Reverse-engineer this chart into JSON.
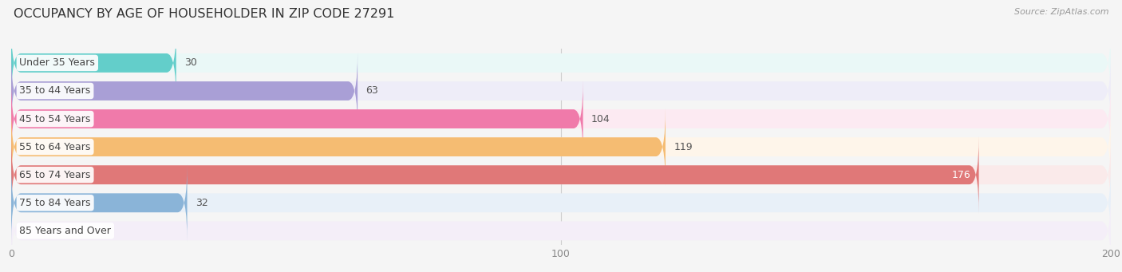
{
  "title": "OCCUPANCY BY AGE OF HOUSEHOLDER IN ZIP CODE 27291",
  "source": "Source: ZipAtlas.com",
  "categories": [
    "Under 35 Years",
    "35 to 44 Years",
    "45 to 54 Years",
    "55 to 64 Years",
    "65 to 74 Years",
    "75 to 84 Years",
    "85 Years and Over"
  ],
  "values": [
    30,
    63,
    104,
    119,
    176,
    32,
    0
  ],
  "bar_colors": [
    "#63ceca",
    "#a99fd6",
    "#f07aaa",
    "#f5bc72",
    "#e07878",
    "#8ab4d8",
    "#c8a8d2"
  ],
  "bar_bg_colors": [
    "#eaf8f7",
    "#eeedf8",
    "#fceaf2",
    "#fef5ea",
    "#faeaea",
    "#e8f0f8",
    "#f4eef8"
  ],
  "xlim": [
    0,
    200
  ],
  "xticks": [
    0,
    100,
    200
  ],
  "background_color": "#f5f5f5",
  "title_fontsize": 11.5,
  "label_fontsize": 9,
  "value_fontsize": 9
}
